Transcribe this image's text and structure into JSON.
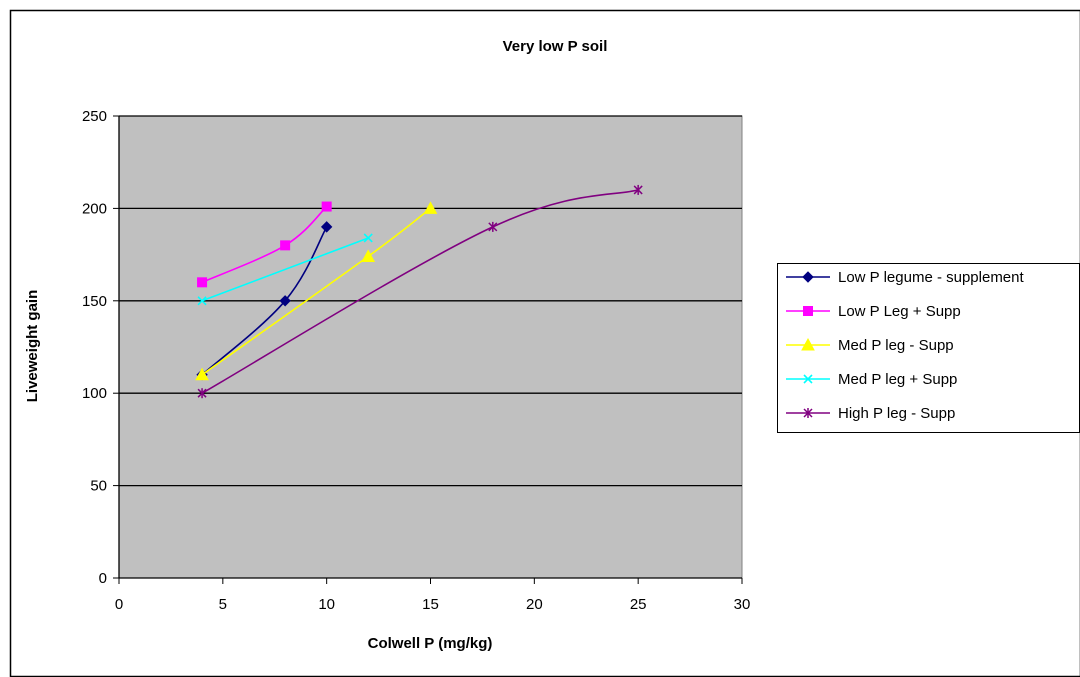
{
  "chart_data": {
    "type": "line",
    "title": "Very low P soil",
    "xlabel": "Colwell P (mg/kg)",
    "ylabel": "Liveweight gain",
    "xlim": [
      0,
      30
    ],
    "ylim": [
      0,
      250
    ],
    "xticks": [
      0,
      5,
      10,
      15,
      20,
      25,
      30
    ],
    "yticks": [
      0,
      50,
      100,
      150,
      200,
      250
    ],
    "grid": "horizontal major lines",
    "plot_background": "#c0c0c0",
    "legend_position": "right",
    "series": [
      {
        "name": "Low P legume - supplement",
        "color": "#000080",
        "marker": "diamond",
        "x": [
          4,
          8,
          10
        ],
        "y": [
          110,
          150,
          190
        ]
      },
      {
        "name": "Low P Leg + Supp",
        "color": "#ff00ff",
        "marker": "square",
        "x": [
          4,
          8,
          10
        ],
        "y": [
          160,
          180,
          201
        ]
      },
      {
        "name": "Med P leg - Supp",
        "color": "#ffff00",
        "marker": "triangle",
        "x": [
          4,
          12,
          15
        ],
        "y": [
          110,
          174,
          200
        ]
      },
      {
        "name": "Med P leg + Supp",
        "color": "#00ffff",
        "marker": "x",
        "x": [
          4,
          12
        ],
        "y": [
          150,
          184
        ]
      },
      {
        "name": "High P leg - Supp",
        "color": "#800080",
        "marker": "star",
        "x": [
          4,
          18,
          25
        ],
        "y": [
          100,
          190,
          210
        ]
      }
    ]
  }
}
